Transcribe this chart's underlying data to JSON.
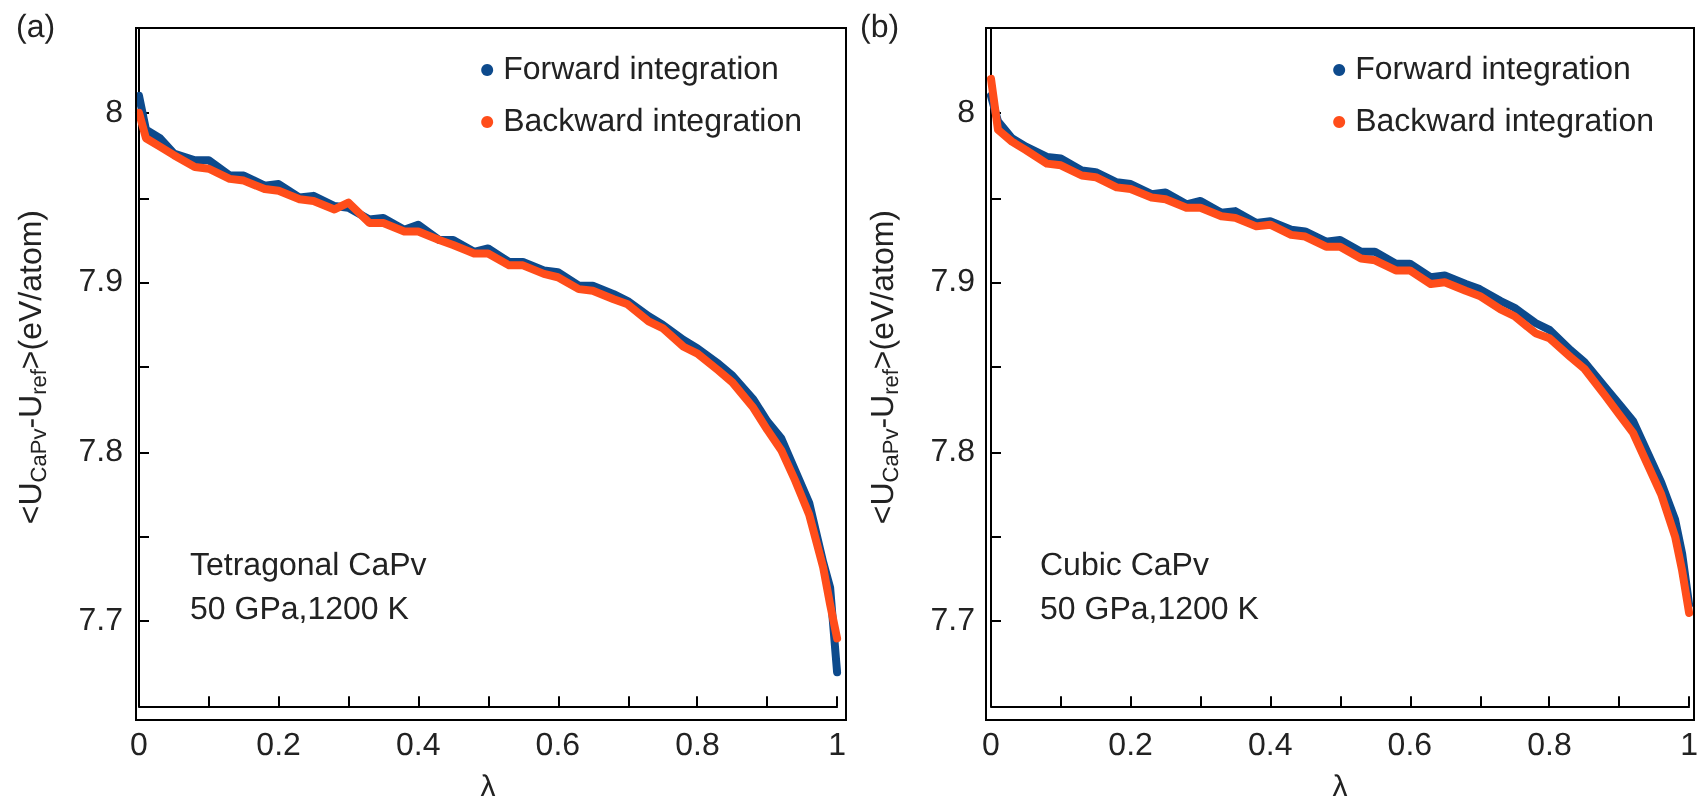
{
  "chart_data": [
    {
      "type": "line",
      "ylabel": "<U$_{CaPv}$-U$_{ref}$>(eV/atom)",
      "xlabel": "λ",
      "annotations": [
        "(a)",
        "Tetragonal CaPv\n50 GPa,1200 K"
      ],
      "x": [
        0,
        0.01,
        0.03,
        0.05,
        0.08,
        0.1,
        0.13,
        0.15,
        0.18,
        0.2,
        0.23,
        0.25,
        0.28,
        0.3,
        0.33,
        0.35,
        0.38,
        0.4,
        0.43,
        0.45,
        0.48,
        0.5,
        0.53,
        0.55,
        0.58,
        0.6,
        0.63,
        0.65,
        0.68,
        0.7,
        0.73,
        0.75,
        0.78,
        0.8,
        0.83,
        0.85,
        0.88,
        0.9,
        0.92,
        0.94,
        0.96,
        0.98,
        0.99,
        1.0
      ],
      "series": [
        {
          "name": "Forward integration",
          "color": "#0d4a8c",
          "values": [
            8.01,
            7.99,
            7.985,
            7.976,
            7.972,
            7.972,
            7.963,
            7.963,
            7.957,
            7.958,
            7.95,
            7.951,
            7.945,
            7.944,
            7.937,
            7.938,
            7.931,
            7.934,
            7.925,
            7.925,
            7.918,
            7.92,
            7.912,
            7.912,
            7.907,
            7.906,
            7.898,
            7.898,
            7.893,
            7.889,
            7.88,
            7.875,
            7.866,
            7.861,
            7.852,
            7.845,
            7.831,
            7.818,
            7.808,
            7.789,
            7.77,
            7.735,
            7.72,
            7.67
          ]
        },
        {
          "name": "Backward integration",
          "color": "#ff4d1a",
          "values": [
            8.0,
            7.985,
            7.98,
            7.975,
            7.968,
            7.967,
            7.961,
            7.96,
            7.955,
            7.954,
            7.949,
            7.948,
            7.943,
            7.947,
            7.935,
            7.935,
            7.93,
            7.93,
            7.925,
            7.922,
            7.917,
            7.917,
            7.91,
            7.91,
            7.905,
            7.903,
            7.896,
            7.895,
            7.89,
            7.887,
            7.877,
            7.873,
            7.862,
            7.858,
            7.848,
            7.841,
            7.826,
            7.813,
            7.801,
            7.783,
            7.763,
            7.732,
            7.71,
            7.69
          ]
        }
      ],
      "xlim": [
        0,
        1
      ],
      "xticks": [
        0,
        {
          "value": 0.1,
          "label": null
        },
        0.2,
        {
          "value": 0.3,
          "label": null
        },
        0.4,
        {
          "value": 0.5,
          "label": null
        },
        0.6,
        {
          "value": 0.7,
          "label": null
        },
        0.8,
        {
          "value": 0.9,
          "label": null
        },
        1
      ],
      "ylim": [
        7.65,
        8.05
      ],
      "yticks": [
        {
          "value": 7.65,
          "label": null
        },
        7.7,
        {
          "value": 7.75,
          "label": null
        },
        7.8,
        {
          "value": 7.85,
          "label": null
        },
        7.9,
        {
          "value": 7.95,
          "label": null
        },
        8
      ],
      "grid": false,
      "legend": "top right",
      "marker": "none",
      "line_style": "solid"
    },
    {
      "type": "line",
      "ylabel": "<U$_{CaPv}$-U$_{ref}$>(eV/atom)",
      "xlabel": "λ",
      "annotations": [
        "(b)",
        "Cubic CaPv\n50 GPa,1200 K"
      ],
      "x": [
        0,
        0.01,
        0.03,
        0.05,
        0.08,
        0.1,
        0.13,
        0.15,
        0.18,
        0.2,
        0.23,
        0.25,
        0.28,
        0.3,
        0.33,
        0.35,
        0.38,
        0.4,
        0.43,
        0.45,
        0.48,
        0.5,
        0.53,
        0.55,
        0.58,
        0.6,
        0.63,
        0.65,
        0.68,
        0.7,
        0.73,
        0.75,
        0.78,
        0.8,
        0.83,
        0.85,
        0.88,
        0.9,
        0.92,
        0.94,
        0.96,
        0.98,
        0.99,
        1.0
      ],
      "series": [
        {
          "name": "Forward integration",
          "color": "#0d4a8c",
          "values": [
            8.01,
            7.995,
            7.985,
            7.98,
            7.974,
            7.973,
            7.966,
            7.965,
            7.959,
            7.958,
            7.952,
            7.953,
            7.946,
            7.948,
            7.941,
            7.942,
            7.935,
            7.936,
            7.931,
            7.93,
            7.924,
            7.925,
            7.918,
            7.918,
            7.911,
            7.911,
            7.903,
            7.904,
            7.899,
            7.896,
            7.889,
            7.885,
            7.876,
            7.872,
            7.86,
            7.853,
            7.838,
            7.828,
            7.818,
            7.8,
            7.782,
            7.76,
            7.74,
            7.71
          ]
        },
        {
          "name": "Backward integration",
          "color": "#ff4d1a",
          "values": [
            8.02,
            7.99,
            7.983,
            7.978,
            7.97,
            7.969,
            7.963,
            7.962,
            7.956,
            7.955,
            7.95,
            7.949,
            7.944,
            7.944,
            7.939,
            7.938,
            7.933,
            7.934,
            7.928,
            7.927,
            7.921,
            7.921,
            7.914,
            7.913,
            7.907,
            7.907,
            7.899,
            7.9,
            7.895,
            7.892,
            7.884,
            7.88,
            7.87,
            7.867,
            7.856,
            7.849,
            7.833,
            7.822,
            7.811,
            7.793,
            7.775,
            7.75,
            7.73,
            7.705
          ]
        }
      ],
      "xlim": [
        0,
        1
      ],
      "xticks": [
        0,
        {
          "value": 0.1,
          "label": null
        },
        0.2,
        {
          "value": 0.3,
          "label": null
        },
        0.4,
        {
          "value": 0.5,
          "label": null
        },
        0.6,
        {
          "value": 0.7,
          "label": null
        },
        0.8,
        {
          "value": 0.9,
          "label": null
        },
        1
      ],
      "ylim": [
        7.65,
        8.05
      ],
      "yticks": [
        {
          "value": 7.65,
          "label": null
        },
        7.7,
        {
          "value": 7.75,
          "label": null
        },
        7.8,
        {
          "value": 7.85,
          "label": null
        },
        7.9,
        {
          "value": 7.95,
          "label": null
        },
        8
      ],
      "grid": false,
      "legend": "top right",
      "marker": "none",
      "line_style": "solid"
    }
  ]
}
